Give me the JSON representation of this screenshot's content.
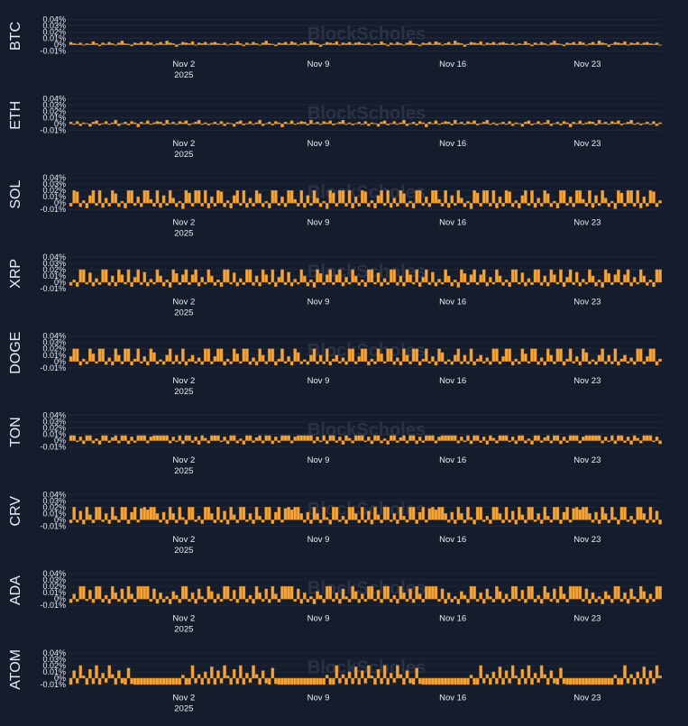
{
  "chart_data": {
    "type": "bar",
    "layout": "small-multiples",
    "watermark": "BlockScholes",
    "colors": {
      "bar": "#f4a43a",
      "bar_edge": "#c37a1c",
      "background": "#151c2c",
      "text": "#e8ecf4",
      "watermark": "#2a3246",
      "grid": "#1f2739"
    },
    "y_ticks": [
      -0.01,
      0,
      0.01,
      0.02,
      0.03,
      0.04
    ],
    "y_tick_labels": [
      "-0.01%",
      "0%",
      "0.01%",
      "0.02%",
      "0.03%",
      "0.04%"
    ],
    "ylim": [
      -0.012,
      0.045
    ],
    "x_ticks": [
      {
        "label": "Nov 2",
        "sub": "2025",
        "index": 36
      },
      {
        "label": "Nov 9",
        "sub": "",
        "index": 78
      },
      {
        "label": "Nov 16",
        "sub": "",
        "index": 120
      },
      {
        "label": "Nov 23",
        "sub": "",
        "index": 162
      }
    ],
    "periods": 185,
    "series": [
      {
        "name": "BTC",
        "pattern": [
          0.004,
          0.002,
          0.001,
          0.003,
          -0.001,
          0.002,
          0.001,
          0.005,
          0.002,
          -0.002,
          0.003,
          0.001,
          0.004,
          0.002,
          -0.001,
          0.003,
          0.006,
          0.002,
          0.001,
          -0.002,
          0.003,
          0.002,
          0.004,
          0.001,
          0.005,
          0.003,
          -0.001,
          0.002,
          0.004,
          0.001,
          0.006,
          0.003,
          0.002,
          -0.003,
          0.001,
          0.004,
          0.003,
          0.002,
          0.005,
          -0.001,
          0.003,
          0.002,
          0.004,
          0.001,
          0.003
        ]
      },
      {
        "name": "ETH",
        "pattern": [
          0.002,
          -0.002,
          0.001,
          0.003,
          -0.001,
          0.004,
          -0.003,
          0.002,
          0.001,
          -0.004,
          0.003,
          0.005,
          -0.002,
          0.001,
          0.004,
          -0.001,
          0.002,
          0.006,
          -0.003,
          0.001,
          0.003,
          -0.002,
          0.004,
          0.002,
          -0.005,
          0.003,
          0.001,
          0.005,
          -0.001,
          0.002,
          0.004,
          0.003,
          -0.002,
          0.006,
          0.001,
          0.003,
          -0.001,
          0.004,
          0.002,
          0.005,
          -0.002,
          0.001,
          0.003,
          0.006,
          -0.001
        ]
      },
      {
        "name": "SOL",
        "pattern": [
          0.02,
          0.02,
          -0.005,
          0.02,
          -0.008,
          0.01,
          -0.005,
          0.02,
          0.018,
          -0.006,
          0.004,
          -0.008,
          0.012,
          0.02,
          -0.004,
          0.02,
          -0.007,
          0.008,
          -0.005,
          0.02,
          0.015,
          -0.006,
          0.003,
          -0.008,
          0.02,
          0.02,
          -0.004,
          0.01,
          -0.006,
          0.02,
          0.02,
          0.006,
          -0.005,
          0.02,
          -0.007,
          0.012,
          -0.004,
          0.02,
          0.008,
          -0.006,
          0.003,
          -0.009,
          0.02,
          0.016,
          -0.005
        ]
      },
      {
        "name": "XRP",
        "pattern": [
          0.02,
          -0.004,
          0.012,
          0.02,
          -0.006,
          0.008,
          -0.003,
          0.02,
          0.01,
          -0.005,
          0.004,
          -0.007,
          0.02,
          0.02,
          -0.003,
          0.015,
          -0.006,
          0.006,
          -0.004,
          0.02,
          0.02,
          -0.005,
          0.01,
          -0.006,
          0.02,
          0.012,
          -0.003,
          0.02,
          -0.007,
          0.008,
          0.02,
          -0.004,
          0.016,
          -0.006,
          0.005,
          -0.003,
          0.02,
          0.01,
          -0.006,
          0.004,
          -0.008,
          0.02,
          0.014,
          -0.004,
          0.012
        ]
      },
      {
        "name": "DOGE",
        "pattern": [
          0.01,
          -0.004,
          0.02,
          -0.006,
          0.004,
          0.01,
          -0.003,
          0.006,
          -0.005,
          0.02,
          0.02,
          -0.004,
          0.008,
          0.02,
          0.02,
          -0.006,
          0.004,
          -0.004,
          0.02,
          0.012,
          -0.003,
          0.02,
          0.02,
          -0.005,
          0.006,
          -0.006,
          0.02,
          0.01,
          -0.004,
          0.02,
          0.02,
          -0.006,
          0.004,
          0.02,
          -0.003,
          0.008,
          -0.006,
          0.02,
          0.014,
          -0.004,
          0.003,
          -0.005,
          0.01,
          0.02,
          -0.004
        ]
      },
      {
        "name": "TON",
        "pattern": [
          0.008,
          -0.004,
          0.006,
          -0.002,
          0.008,
          -0.005,
          0.008,
          0.008,
          -0.003,
          0.006,
          -0.006,
          0.008,
          0.004,
          -0.004,
          0.008,
          0.008,
          0.008,
          -0.002,
          0.006,
          -0.005,
          0.008,
          0.008,
          -0.004,
          0.003,
          -0.006,
          0.008,
          0.008,
          -0.003,
          0.005,
          0.008,
          -0.004,
          0.008,
          0.008,
          -0.005,
          0.006,
          -0.003,
          0.008,
          0.008,
          0.008,
          -0.004,
          0.006,
          0.008,
          0.008,
          0.008,
          0.008
        ]
      },
      {
        "name": "CRV",
        "pattern": [
          0.01,
          -0.004,
          0.012,
          -0.006,
          0.02,
          0.01,
          -0.005,
          0.02,
          0.004,
          -0.007,
          0.02,
          0.02,
          -0.003,
          0.006,
          -0.006,
          0.02,
          0.02,
          0.01,
          -0.005,
          0.02,
          -0.004,
          0.014,
          -0.007,
          0.02,
          0.008,
          -0.005,
          0.02,
          0.02,
          -0.003,
          0.01,
          -0.006,
          0.02,
          0.006,
          -0.004,
          0.02,
          0.02,
          -0.006,
          0.012,
          0.02,
          -0.004,
          0.018,
          0.02,
          0.016,
          0.02,
          0.02
        ]
      },
      {
        "name": "ADA",
        "pattern": [
          0.02,
          -0.004,
          0.016,
          -0.007,
          0.01,
          -0.005,
          0.004,
          -0.008,
          0.012,
          0.006,
          -0.006,
          0.02,
          0.02,
          -0.004,
          0.01,
          -0.007,
          0.016,
          0.004,
          -0.005,
          0.02,
          0.012,
          -0.006,
          0.008,
          -0.004,
          0.02,
          0.02,
          -0.003,
          0.014,
          -0.006,
          0.02,
          0.02,
          -0.005,
          0.006,
          -0.007,
          0.02,
          0.01,
          -0.004,
          0.016,
          -0.006,
          0.02,
          0.008,
          -0.005,
          0.02,
          0.02,
          0.02
        ]
      },
      {
        "name": "ATOM",
        "pattern": [
          -0.01,
          -0.01,
          -0.01,
          -0.01,
          -0.01,
          -0.01,
          -0.01,
          -0.01,
          -0.01,
          -0.01,
          -0.01,
          -0.01,
          -0.01,
          -0.01,
          0.005,
          -0.01,
          -0.01,
          0.02,
          -0.008,
          0.006,
          -0.01,
          0.01,
          -0.009,
          0.018,
          -0.01,
          0.012,
          -0.008,
          0.02,
          0.004,
          -0.01,
          0.014,
          -0.009,
          0.02,
          -0.01,
          0.008,
          -0.007,
          0.02,
          0.006,
          -0.01,
          0.012,
          -0.008,
          -0.01,
          0.016,
          -0.009,
          -0.01
        ]
      }
    ]
  }
}
